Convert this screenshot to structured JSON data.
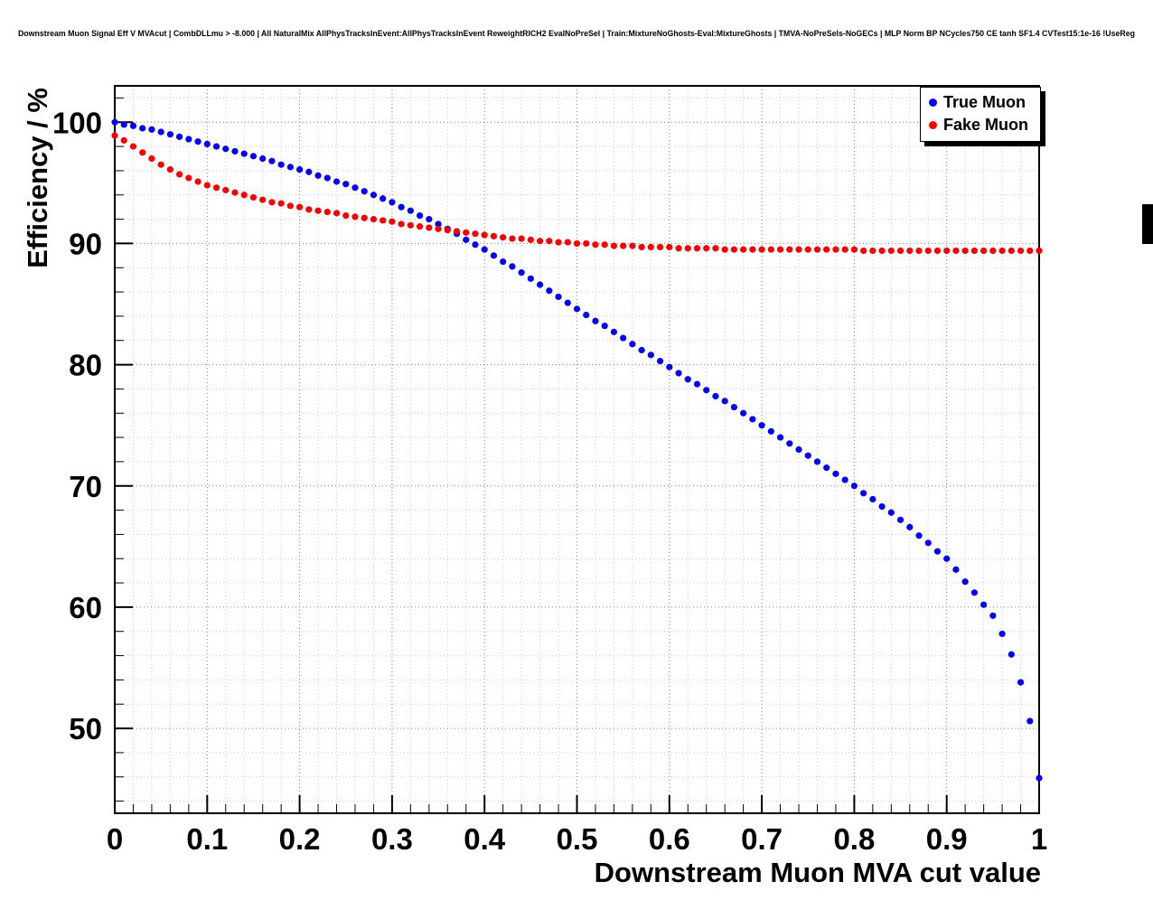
{
  "window": {
    "title": "Downstream Muon Signal Eff V MVAcut | CombDLLmu > -8.000 | All NaturalMix AllPhysTracksInEvent:AllPhysTracksInEvent ReweightRICH2 EvalNoPreSel | Train:MixtureNoGhosts-Eval:MixtureGhosts | TMVA-NoPreSels-NoGECs | MLP Norm BP NCycles750 CE tanh SF1.4 CVTest15:1e-16 !UseReg"
  },
  "chart_data": {
    "type": "scatter",
    "title": "Downstream Muon Signal Eff V MVAcut | CombDLLmu > -8.000 | All NaturalMix AllPhysTracksInEvent:AllPhysTracksInEvent ReweightRICH2 EvalNoPreSel | Train:MixtureNoGhosts-Eval:MixtureGhosts | TMVA-NoPreSels-NoGECs | MLP Norm BP NCycles750 CE tanh SF1.4 CVTest15:1e-16 !UseReg",
    "xlabel": "Downstream Muon MVA cut value",
    "ylabel": "Efficiency / %",
    "xlim": [
      0,
      1
    ],
    "ylim": [
      43,
      103
    ],
    "grid": "dotted-both-axes-with-minor-divisions",
    "x_ticks": {
      "values": [
        0,
        0.1,
        0.2,
        0.3,
        0.4,
        0.5,
        0.6,
        0.7,
        0.8,
        0.9,
        1
      ],
      "labels": [
        "0",
        "0.1",
        "0.2",
        "0.3",
        "0.4",
        "0.5",
        "0.6",
        "0.7",
        "0.8",
        "0.9",
        "1"
      ],
      "minor_step": 0.02
    },
    "y_ticks": {
      "values": [
        50,
        60,
        70,
        80,
        90,
        100
      ],
      "labels": [
        "50",
        "60",
        "70",
        "80",
        "90",
        "100"
      ],
      "minor_step": 2
    },
    "legend": {
      "position": "top-right",
      "entries": [
        {
          "label": "True Muon",
          "color": "#0000f5",
          "marker": "circle"
        },
        {
          "label": "Fake Muon",
          "color": "#f50000",
          "marker": "circle"
        }
      ]
    },
    "x": [
      0,
      0.01,
      0.02,
      0.03,
      0.04,
      0.05,
      0.06,
      0.07,
      0.08,
      0.09,
      0.1,
      0.11,
      0.12,
      0.13,
      0.14,
      0.15,
      0.16,
      0.17,
      0.18,
      0.19,
      0.2,
      0.21,
      0.22,
      0.23,
      0.24,
      0.25,
      0.26,
      0.27,
      0.28,
      0.29,
      0.3,
      0.31,
      0.32,
      0.33,
      0.34,
      0.35,
      0.36,
      0.37,
      0.38,
      0.39,
      0.4,
      0.41,
      0.42,
      0.43,
      0.44,
      0.45,
      0.46,
      0.47,
      0.48,
      0.49,
      0.5,
      0.51,
      0.52,
      0.53,
      0.54,
      0.55,
      0.56,
      0.57,
      0.58,
      0.59,
      0.6,
      0.61,
      0.62,
      0.63,
      0.64,
      0.65,
      0.66,
      0.67,
      0.68,
      0.69,
      0.7,
      0.71,
      0.72,
      0.73,
      0.74,
      0.75,
      0.76,
      0.77,
      0.78,
      0.79,
      0.8,
      0.81,
      0.82,
      0.83,
      0.84,
      0.85,
      0.86,
      0.87,
      0.88,
      0.89,
      0.9,
      0.91,
      0.92,
      0.93,
      0.94,
      0.95,
      0.96,
      0.97,
      0.98,
      0.99,
      1
    ],
    "series": [
      {
        "name": "True Muon",
        "color": "#0000f5",
        "marker": "circle",
        "values": [
          100.0,
          99.8,
          99.7,
          99.5,
          99.4,
          99.2,
          99.0,
          98.8,
          98.6,
          98.4,
          98.2,
          98.0,
          97.8,
          97.6,
          97.4,
          97.2,
          97.0,
          96.8,
          96.5,
          96.3,
          96.1,
          95.9,
          95.6,
          95.4,
          95.1,
          94.9,
          94.6,
          94.3,
          94.0,
          93.7,
          93.4,
          93.0,
          92.7,
          92.3,
          92.0,
          91.6,
          91.2,
          90.8,
          90.3,
          89.9,
          89.5,
          89.0,
          88.5,
          88.1,
          87.6,
          87.1,
          86.6,
          86.1,
          85.6,
          85.1,
          84.6,
          84.1,
          83.6,
          83.2,
          82.7,
          82.2,
          81.7,
          81.2,
          80.8,
          80.3,
          79.8,
          79.3,
          78.8,
          78.4,
          77.9,
          77.4,
          77.0,
          76.5,
          76.0,
          75.5,
          75.0,
          74.5,
          74.0,
          73.5,
          73.0,
          72.5,
          72.0,
          71.5,
          71.0,
          70.5,
          70.0,
          69.4,
          68.9,
          68.3,
          67.8,
          67.2,
          66.6,
          65.9,
          65.3,
          64.6,
          64.0,
          63.1,
          62.1,
          61.2,
          60.2,
          59.3,
          57.8,
          56.1,
          53.8,
          50.6,
          45.9
        ]
      },
      {
        "name": "Fake Muon",
        "color": "#f50000",
        "marker": "circle",
        "values": [
          98.9,
          98.5,
          98.0,
          97.5,
          97.0,
          96.5,
          96.1,
          95.7,
          95.4,
          95.1,
          94.8,
          94.6,
          94.4,
          94.2,
          94.0,
          93.8,
          93.6,
          93.4,
          93.3,
          93.1,
          93.0,
          92.8,
          92.7,
          92.6,
          92.5,
          92.3,
          92.2,
          92.1,
          92.0,
          91.9,
          91.8,
          91.6,
          91.5,
          91.4,
          91.3,
          91.2,
          91.1,
          91.0,
          90.9,
          90.8,
          90.7,
          90.6,
          90.5,
          90.4,
          90.4,
          90.3,
          90.2,
          90.2,
          90.1,
          90.1,
          90.0,
          90.0,
          89.9,
          89.9,
          89.8,
          89.8,
          89.8,
          89.7,
          89.7,
          89.7,
          89.7,
          89.6,
          89.6,
          89.6,
          89.6,
          89.6,
          89.5,
          89.5,
          89.5,
          89.5,
          89.5,
          89.5,
          89.5,
          89.5,
          89.5,
          89.5,
          89.5,
          89.5,
          89.5,
          89.5,
          89.5,
          89.4,
          89.4,
          89.4,
          89.4,
          89.4,
          89.4,
          89.4,
          89.4,
          89.4,
          89.4,
          89.4,
          89.4,
          89.4,
          89.4,
          89.4,
          89.4,
          89.4,
          89.4,
          89.4,
          89.4
        ]
      }
    ]
  }
}
